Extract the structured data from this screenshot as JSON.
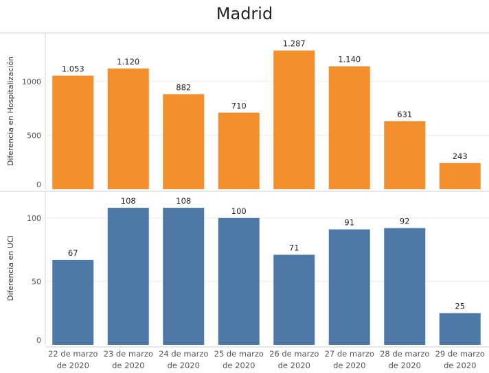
{
  "title": "Madrid",
  "chart_data": [
    {
      "type": "bar",
      "ylabel": "Diferencia en Hospitalización",
      "ylim": [
        0,
        1450
      ],
      "yticks": [
        0,
        500,
        1000
      ],
      "color": "#F28E2B",
      "categories": [
        "22 de marzo de 2020",
        "23 de marzo de 2020",
        "24 de marzo de 2020",
        "25 de marzo de 2020",
        "26 de marzo de 2020",
        "27 de marzo de 2020",
        "28 de marzo de 2020",
        "29 de marzo de 2020"
      ],
      "values": [
        1053,
        1120,
        882,
        710,
        1287,
        1140,
        631,
        243
      ],
      "value_labels": [
        "1.053",
        "1.120",
        "882",
        "710",
        "1.287",
        "1.140",
        "631",
        "243"
      ],
      "grid": true
    },
    {
      "type": "bar",
      "ylabel": "Diferencia en UCI",
      "ylim": [
        0,
        121
      ],
      "yticks": [
        0,
        50,
        100
      ],
      "color": "#4E79A7",
      "categories": [
        "22 de marzo de 2020",
        "23 de marzo de 2020",
        "24 de marzo de 2020",
        "25 de marzo de 2020",
        "26 de marzo de 2020",
        "27 de marzo de 2020",
        "28 de marzo de 2020",
        "29 de marzo de 2020"
      ],
      "values": [
        67,
        108,
        108,
        100,
        71,
        91,
        92,
        25
      ],
      "value_labels": [
        "67",
        "108",
        "108",
        "100",
        "71",
        "91",
        "92",
        "25"
      ],
      "grid": true
    }
  ],
  "x_tick_labels": [
    [
      "22 de marzo",
      "de 2020"
    ],
    [
      "23 de marzo",
      "de 2020"
    ],
    [
      "24 de marzo",
      "de 2020"
    ],
    [
      "25 de marzo",
      "de 2020"
    ],
    [
      "26 de marzo",
      "de 2020"
    ],
    [
      "27 de marzo",
      "de 2020"
    ],
    [
      "28 de marzo",
      "de 2020"
    ],
    [
      "29 de marzo",
      "de 2020"
    ]
  ]
}
